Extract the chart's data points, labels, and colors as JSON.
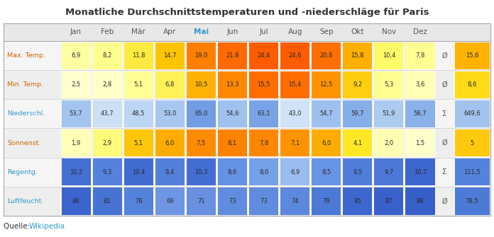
{
  "title": "Monatliche Durchschnittstemperaturen und -niederschläge für Paris",
  "months": [
    "Jan",
    "Feb",
    "Mär",
    "Apr",
    "Mai",
    "Jun",
    "Jul",
    "Aug",
    "Sep",
    "Okt",
    "Nov",
    "Dez"
  ],
  "rows": [
    {
      "label": "Max. Temp.",
      "values": [
        6.9,
        8.2,
        11.8,
        14.7,
        19.0,
        21.8,
        24.4,
        24.6,
        20.8,
        15.8,
        10.4,
        7.8
      ],
      "agg_symbol": "Ø",
      "agg_value": "15,6",
      "agg_num": 15.6,
      "color_scheme": "temp_max",
      "label_color": "#cc6600",
      "vmin": 5.0,
      "vmax": 25.0
    },
    {
      "label": "Min. Temp.",
      "values": [
        2.5,
        2.8,
        5.1,
        6.8,
        10.5,
        13.3,
        15.5,
        15.4,
        12.5,
        9.2,
        5.3,
        3.6
      ],
      "agg_symbol": "Ø",
      "agg_value": "8,6",
      "agg_num": 8.6,
      "color_scheme": "temp_min",
      "label_color": "#cc6600",
      "vmin": 2.0,
      "vmax": 16.0
    },
    {
      "label": "Niederschl.",
      "values": [
        53.7,
        43.7,
        48.5,
        53.0,
        65.0,
        54.6,
        63.1,
        43.0,
        54.7,
        59.7,
        51.9,
        58.7
      ],
      "agg_symbol": "Σ",
      "agg_value": "649,6",
      "agg_num": 54.1,
      "color_scheme": "precip",
      "label_color": "#3399cc",
      "vmin": 40.0,
      "vmax": 68.0
    },
    {
      "label": "Sonnenst.",
      "values": [
        1.9,
        2.9,
        5.1,
        6.0,
        7.5,
        8.1,
        7.8,
        7.1,
        6.0,
        4.1,
        2.0,
        1.5
      ],
      "agg_symbol": "Ø",
      "agg_value": "5",
      "agg_num": 5.0,
      "color_scheme": "sun",
      "label_color": "#cc6600",
      "vmin": 1.0,
      "vmax": 8.5
    },
    {
      "label": "Regentg.",
      "values": [
        10.2,
        9.3,
        10.4,
        9.4,
        10.3,
        8.6,
        8.0,
        6.9,
        8.5,
        9.5,
        9.7,
        10.7
      ],
      "agg_symbol": "Σ",
      "agg_value": "111,5",
      "agg_num": 9.3,
      "color_scheme": "rain_days",
      "label_color": "#3399cc",
      "vmin": 6.5,
      "vmax": 11.0
    },
    {
      "label": "Luftfeucht.",
      "values": [
        86,
        81,
        76,
        69,
        71,
        73,
        73,
        74,
        79,
        85,
        87,
        88
      ],
      "agg_symbol": "Ø",
      "agg_value": "78,5",
      "agg_num": 78.5,
      "color_scheme": "humidity",
      "label_color": "#3399cc",
      "vmin": 68.0,
      "vmax": 90.0
    }
  ],
  "source_text": "Quelle: ",
  "source_link": "Wikipedia",
  "source_link_color": "#3399cc",
  "bg_color": "#ffffff",
  "table_outer_bg": "#f5f5f5",
  "header_bg": "#ebebeb",
  "row_bg_even": "#f5f5f5",
  "row_bg_odd": "#eeeeee"
}
